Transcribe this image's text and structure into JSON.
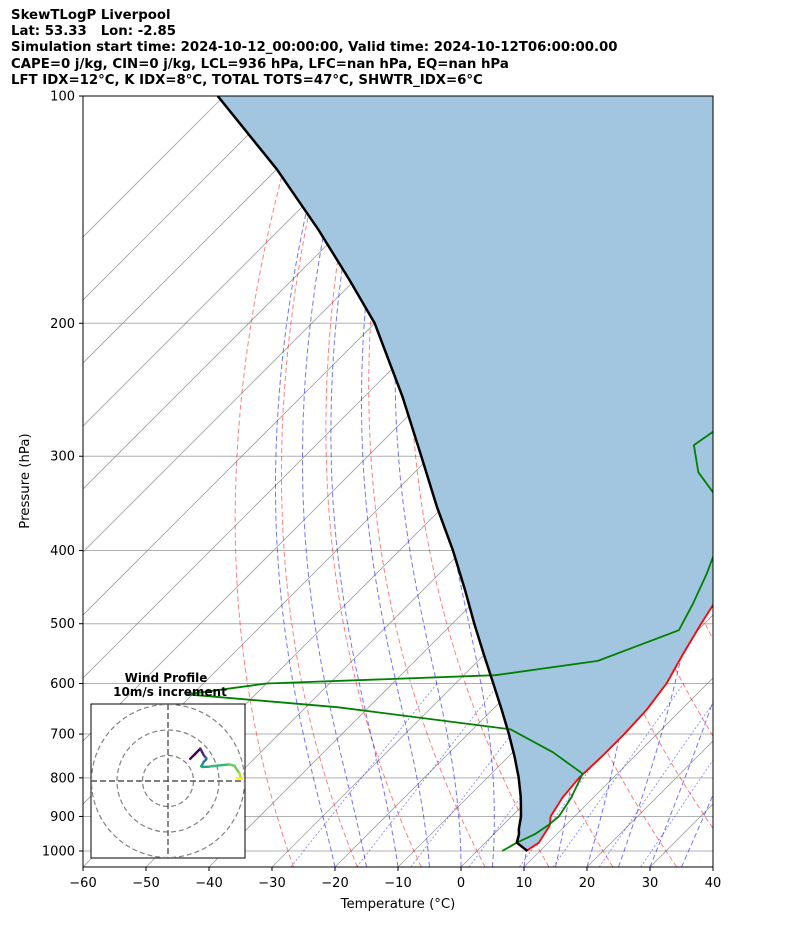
{
  "header": {
    "line1": "SkewTLogP Liverpool",
    "line2": "Lat: 53.33   Lon: -2.85",
    "line3": "Simulation start time: 2024-10-12_00:00:00, Valid time: 2024-10-12T06:00:00.00",
    "line4": "CAPE=0 j/kg, CIN=0 j/kg, LCL=936 hPa, LFC=nan hPa, EQ=nan hPa",
    "line5": "LFT IDX=12°C, K IDX=8°C, TOTAL TOTS=47°C, SHWTR_IDX=6°C"
  },
  "chart_data": {
    "type": "skewt",
    "xlabel": "Temperature (°C)",
    "ylabel": "Pressure (hPa)",
    "xlim": [
      -60,
      40
    ],
    "ylim": [
      1050,
      100
    ],
    "y_scale": "log",
    "x_ticks": [
      -60,
      -50,
      -40,
      -30,
      -20,
      -10,
      0,
      10,
      20,
      30,
      40
    ],
    "y_ticks": [
      100,
      200,
      300,
      400,
      500,
      600,
      700,
      800,
      900,
      1000
    ],
    "grid": true,
    "background_lines": {
      "dry_adiabats_color": "#ff0000",
      "moist_adiabats_color": "#0000ff",
      "mixing_ratio_color": "#0000ff",
      "isotherm_color": "#808080"
    },
    "series": [
      {
        "color": "#ff0000",
        "points": [
          [
            7.8,
            1000
          ],
          [
            8.5,
            975
          ],
          [
            8,
            950
          ],
          [
            7.5,
            925
          ],
          [
            6.2,
            900
          ],
          [
            5.1,
            850
          ],
          [
            4.6,
            800
          ],
          [
            4.8,
            750
          ],
          [
            4.8,
            700
          ],
          [
            4.5,
            650
          ],
          [
            3.5,
            600
          ],
          [
            1.5,
            550
          ],
          [
            -0.5,
            500
          ],
          [
            -2.5,
            450
          ],
          [
            -4.5,
            400
          ],
          [
            -9,
            350
          ],
          [
            -13.8,
            300
          ],
          [
            -19.3,
            250
          ],
          [
            -21.5,
            225
          ],
          [
            -23.5,
            200
          ],
          [
            -27,
            175
          ],
          [
            -31.2,
            150
          ],
          [
            -35.7,
            125
          ],
          [
            -40.2,
            100
          ]
        ]
      },
      {
        "color": "#008000",
        "points": [
          [
            4,
            1000
          ],
          [
            5,
            975
          ],
          [
            6.5,
            950
          ],
          [
            7.2,
            925
          ],
          [
            7.5,
            900
          ],
          [
            6.5,
            850
          ],
          [
            4.5,
            790
          ],
          [
            -3.6,
            740
          ],
          [
            -14,
            690
          ],
          [
            -45,
            645
          ],
          [
            -71,
            620
          ],
          [
            -60,
            600
          ],
          [
            -25,
            585
          ],
          [
            -11,
            560
          ],
          [
            -3,
            510
          ],
          [
            -5,
            470
          ],
          [
            -7.5,
            430
          ],
          [
            -11.5,
            380
          ],
          [
            -15.5,
            350
          ],
          [
            -25,
            315
          ],
          [
            -30,
            290
          ],
          [
            -28,
            265
          ],
          [
            -30,
            240
          ],
          [
            -33,
            215
          ],
          [
            -34,
            195
          ],
          [
            -35,
            178
          ],
          [
            -33.5,
            160
          ],
          [
            -30,
            137
          ],
          [
            -24,
            100
          ]
        ]
      },
      {
        "color": "#000000",
        "points": [
          [
            8,
            1000
          ],
          [
            5,
            975
          ],
          [
            4,
            950
          ],
          [
            3.2,
            936
          ],
          [
            1.5,
            900
          ],
          [
            -1.5,
            850
          ],
          [
            -5,
            800
          ],
          [
            -9,
            750
          ],
          [
            -13.5,
            700
          ],
          [
            -18.5,
            650
          ],
          [
            -24,
            600
          ],
          [
            -30,
            550
          ],
          [
            -36.5,
            500
          ],
          [
            -43.5,
            450
          ],
          [
            -51.5,
            400
          ],
          [
            -61,
            350
          ],
          [
            -71.5,
            300
          ],
          [
            -84,
            250
          ],
          [
            -100,
            200
          ],
          [
            -111,
            175
          ],
          [
            -124,
            150
          ],
          [
            -140,
            125
          ],
          [
            -161,
            100
          ]
        ]
      }
    ],
    "fill_between": {
      "color": "#a3c6e0",
      "between": [
        "temperature",
        "parcel"
      ]
    },
    "wind_barbs": [
      {
        "p": 1000,
        "u": -8.7,
        "v": -8.7
      },
      {
        "p": 975,
        "u": -10.6,
        "v": -10.6
      },
      {
        "p": 950,
        "u": -12,
        "v": -12
      },
      {
        "p": 925,
        "u": -12.7,
        "v": -12.7
      },
      {
        "p": 900,
        "u": -13.4,
        "v": -11.3
      },
      {
        "p": 850,
        "u": -14.1,
        "v": -10
      },
      {
        "p": 800,
        "u": -14.5,
        "v": -9.5
      },
      {
        "p": 750,
        "u": -15,
        "v": -9
      },
      {
        "p": 700,
        "u": -15,
        "v": -8.5
      },
      {
        "p": 650,
        "u": -14.5,
        "v": -8
      },
      {
        "p": 600,
        "u": -14,
        "v": -7.5
      },
      {
        "p": 550,
        "u": -13.5,
        "v": -6.5
      },
      {
        "p": 500,
        "u": -13,
        "v": -5.8
      },
      {
        "p": 450,
        "u": -13.5,
        "v": -5.5
      },
      {
        "p": 400,
        "u": -16,
        "v": -5.6
      },
      {
        "p": 350,
        "u": -19,
        "v": -6
      },
      {
        "p": 300,
        "u": -24,
        "v": -6.5
      },
      {
        "p": 250,
        "u": -26,
        "v": -6
      },
      {
        "p": 200,
        "u": -28,
        "v": -3
      },
      {
        "p": 175,
        "u": -28.5,
        "v": -1.5
      },
      {
        "p": 150,
        "u": -29,
        "v": -1
      },
      {
        "p": 125,
        "u": -28,
        "v": -1
      },
      {
        "p": 100,
        "u": -27,
        "v": -1
      }
    ],
    "hodograph": {
      "title": "Wind Profile",
      "subtitle": "10m/s increment",
      "ring_step_ms": 10,
      "colormap": "viridis",
      "points": [
        [
          8.7,
          8.7
        ],
        [
          10.6,
          10.6
        ],
        [
          12,
          12
        ],
        [
          12.7,
          12.7
        ],
        [
          13.4,
          11.3
        ],
        [
          14.1,
          10
        ],
        [
          14.5,
          9.5
        ],
        [
          15,
          9
        ],
        [
          15,
          8.5
        ],
        [
          14.5,
          8
        ],
        [
          14,
          7.5
        ],
        [
          13.5,
          6.5
        ],
        [
          13,
          5.8
        ],
        [
          13.5,
          5.5
        ],
        [
          16,
          5.6
        ],
        [
          19,
          6
        ],
        [
          24,
          6.5
        ],
        [
          26,
          6
        ],
        [
          28,
          3
        ],
        [
          28.5,
          1.5
        ],
        [
          29,
          1
        ],
        [
          28,
          1
        ],
        [
          27,
          1
        ]
      ]
    }
  }
}
